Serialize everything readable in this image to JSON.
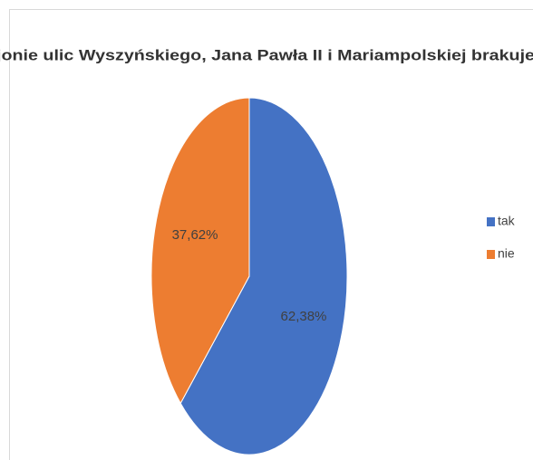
{
  "chart_data": {
    "type": "pie",
    "title": "jonie ulic Wyszyńskiego, Jana Pawła II i Mariampolskiej brakuje",
    "categories": [
      "tak",
      "nie"
    ],
    "values": [
      62.38,
      37.62
    ],
    "value_labels": [
      "62,38%",
      "37,62%"
    ],
    "colors": [
      "#4472c4",
      "#ed7d31"
    ],
    "legend": "right"
  }
}
